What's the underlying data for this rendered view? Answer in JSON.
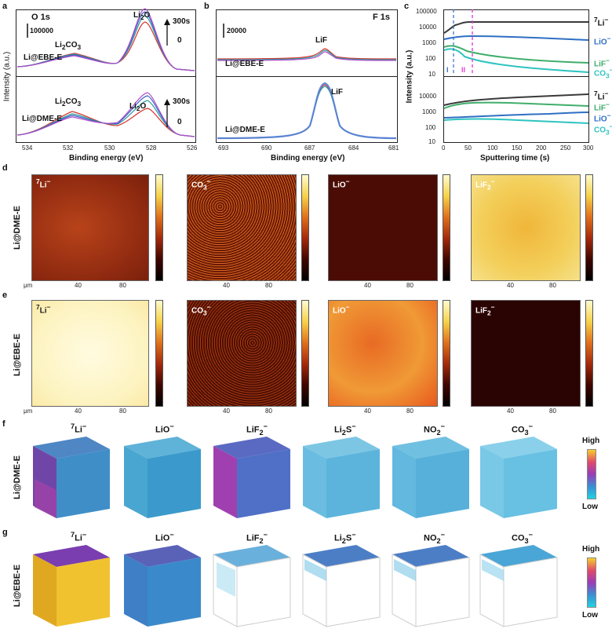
{
  "panels": {
    "a": {
      "letter": "a",
      "title": "O 1s",
      "scale": "100000",
      "sputter_top": "300s",
      "sputter_bot": "0",
      "peak1": "Li",
      "peak1_sub": "2",
      "peak1_tail": "CO",
      "peak1_sub2": "3",
      "peak2": "Li",
      "peak2_sub": "2",
      "peak2_tail": "O",
      "upper_sample": "Li@EBE-E",
      "lower_sample": "Li@DME-E",
      "xlabel": "Binding energy (eV)",
      "ylabel": "Intensity (a.u.)",
      "xticks": [
        "534",
        "532",
        "530",
        "528",
        "526"
      ]
    },
    "b": {
      "letter": "b",
      "title": "F 1s",
      "scale": "20000",
      "peak": "LiF",
      "upper_sample": "Li@EBE-E",
      "lower_sample": "Li@DME-E",
      "xlabel": "Binding energy (eV)",
      "xticks": [
        "693",
        "690",
        "687",
        "684",
        "681"
      ]
    },
    "c": {
      "letter": "c",
      "xlabel": "Sputtering time (s)",
      "ylabel": "Intensity (a.u.)",
      "xticks": [
        "0",
        "50",
        "100",
        "150",
        "200",
        "250",
        "300"
      ],
      "yticks_top": [
        "100000",
        "10000",
        "1000",
        "100",
        "10"
      ],
      "yticks_bot": [
        "10000",
        "1000",
        "100",
        "10"
      ],
      "region1": "I",
      "region2": "II"
    },
    "d": {
      "letter": "d",
      "sample": "Li@DME-E"
    },
    "e": {
      "letter": "e",
      "sample": "Li@EBE-E"
    },
    "f": {
      "letter": "f",
      "sample": "Li@DME-E"
    },
    "g": {
      "letter": "g",
      "sample": "Li@EBE-E"
    }
  },
  "ions": {
    "li7": {
      "sup": "7",
      "base": "Li",
      "charge": "−"
    },
    "co3": {
      "base": "CO",
      "sub": "3",
      "charge": "−"
    },
    "lio": {
      "base": "LiO",
      "charge": "−"
    },
    "lif2": {
      "base": "LiF",
      "sub": "2",
      "charge": "−"
    },
    "lif": {
      "base": "LiF",
      "charge": "−"
    },
    "li2s": {
      "base": "Li",
      "sub": "2",
      "tail": "S",
      "charge": "−"
    },
    "no2": {
      "base": "NO",
      "sub": "2",
      "charge": "−"
    }
  },
  "maps": {
    "axis_unit": "μm",
    "xticks": [
      "0",
      "40",
      "80"
    ],
    "yticks": [
      "100",
      "80",
      "60",
      "40",
      "20",
      "0"
    ],
    "cb_ticks": {
      "li7": [
        "2.0",
        "1.8",
        "1.6",
        "1.4",
        "1.2",
        "1.0",
        "0.8",
        "0.6",
        "0.4",
        "0.2",
        "0"
      ],
      "co3": [
        "15",
        "10",
        "5",
        "0"
      ],
      "lio": [
        "70",
        "60",
        "50",
        "40",
        "30",
        "20",
        "10",
        "0"
      ],
      "lif2": [
        "60",
        "50",
        "40",
        "30",
        "20",
        "10",
        "0"
      ]
    },
    "cb_exp": "10²"
  },
  "cubes": {
    "high": "High",
    "low": "Low"
  },
  "colors": {
    "ebe_red": "#d9352e",
    "dme_blue": "#3b5fc4",
    "teal": "#2a9aa0",
    "purple": "#b14fc9",
    "li_gray": "#3a3a3a",
    "lio_blue": "#2f6fc4",
    "lif_green": "#3fae6b",
    "co3_cyan": "#2ec4c0"
  }
}
